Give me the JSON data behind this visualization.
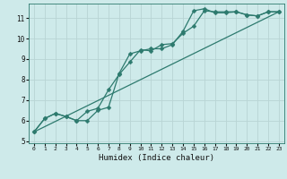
{
  "xlabel": "Humidex (Indice chaleur)",
  "bg_color": "#ceeaea",
  "grid_color": "#b8d4d4",
  "line_color": "#2d7a6e",
  "xlim": [
    -0.5,
    23.5
  ],
  "ylim": [
    4.9,
    11.7
  ],
  "xticks": [
    0,
    1,
    2,
    3,
    4,
    5,
    6,
    7,
    8,
    9,
    10,
    11,
    12,
    13,
    14,
    15,
    16,
    17,
    18,
    19,
    20,
    21,
    22,
    23
  ],
  "yticks": [
    5,
    6,
    7,
    8,
    9,
    10,
    11
  ],
  "line1_x": [
    0,
    1,
    2,
    3,
    4,
    5,
    6,
    7,
    8,
    9,
    10,
    11,
    12,
    13,
    14,
    15,
    16,
    17,
    18,
    19,
    20,
    21,
    22,
    23
  ],
  "line1_y": [
    5.45,
    6.1,
    6.35,
    6.2,
    6.0,
    6.0,
    6.5,
    6.65,
    8.3,
    9.25,
    9.4,
    9.5,
    9.5,
    9.7,
    10.35,
    11.35,
    11.45,
    11.25,
    11.25,
    11.3,
    11.15,
    11.1,
    11.3,
    11.3
  ],
  "line2_x": [
    0,
    1,
    2,
    3,
    4,
    5,
    6,
    7,
    8,
    9,
    10,
    11,
    12,
    13,
    14,
    15,
    16,
    17,
    18,
    19,
    20,
    21,
    22,
    23
  ],
  "line2_y": [
    5.45,
    6.1,
    6.35,
    6.2,
    6.0,
    6.45,
    6.6,
    7.5,
    8.25,
    8.85,
    9.45,
    9.4,
    9.7,
    9.75,
    10.25,
    10.6,
    11.35,
    11.3,
    11.3,
    11.3,
    11.15,
    11.1,
    11.3,
    11.3
  ],
  "line3_x": [
    0,
    23
  ],
  "line3_y": [
    5.45,
    11.3
  ]
}
